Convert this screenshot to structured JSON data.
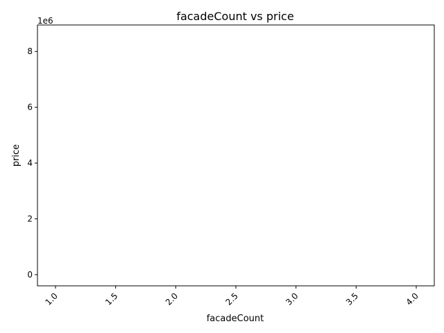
{
  "chart_data": {
    "type": "scatter",
    "title": "facadeCount vs price",
    "xlabel": "facadeCount",
    "ylabel": "price",
    "x_ticks": [
      "1.0",
      "1.5",
      "2.0",
      "2.5",
      "3.0",
      "3.5",
      "4.0"
    ],
    "y_ticks": [
      "0",
      "2",
      "4",
      "6",
      "8"
    ],
    "y_offset_text": "1e6",
    "xlim": [
      0.85,
      4.15
    ],
    "ylim": [
      -400000,
      8950000
    ],
    "grid": false,
    "series": [
      {
        "x": [],
        "y": []
      }
    ]
  }
}
